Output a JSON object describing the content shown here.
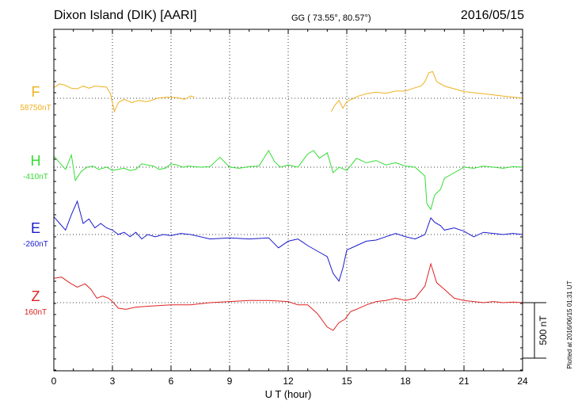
{
  "header": {
    "station": "Dixon Island (DIK)  [AARI]",
    "coords": "GG ( 73.55°,  80.57°)",
    "date": "2016/05/15"
  },
  "chart_data": {
    "type": "line",
    "xlabel": "U T (hour)",
    "xlim": [
      0,
      24
    ],
    "xticks": [
      "0",
      "3",
      "6",
      "9",
      "12",
      "15",
      "18",
      "21",
      "24"
    ],
    "scale_bar_label": "500 nT",
    "scale_bar_nT": 500,
    "plotted_note": "Plotted at 2016/06/15 01:31  UT",
    "series": [
      {
        "name": "F",
        "baseline_label": "58750nT",
        "color": "#f0b020",
        "segments": [
          [
            [
              0,
              95
            ],
            [
              0.3,
              130
            ],
            [
              0.6,
              115
            ],
            [
              0.9,
              90
            ],
            [
              1.2,
              85
            ],
            [
              1.5,
              110
            ],
            [
              1.8,
              90
            ],
            [
              2.1,
              110
            ],
            [
              2.4,
              105
            ],
            [
              2.7,
              100
            ],
            [
              2.9,
              40
            ],
            [
              3.1,
              -120
            ],
            [
              3.3,
              -40
            ],
            [
              3.6,
              -10
            ],
            [
              4.0,
              -40
            ],
            [
              4.3,
              -20
            ],
            [
              4.8,
              -30
            ],
            [
              5.3,
              0
            ],
            [
              5.8,
              10
            ],
            [
              6.3,
              5
            ],
            [
              6.7,
              -10
            ],
            [
              7.0,
              20
            ],
            [
              7.2,
              10
            ]
          ],
          [
            [
              14.2,
              -120
            ],
            [
              14.4,
              -60
            ],
            [
              14.6,
              -20
            ],
            [
              14.8,
              -90
            ],
            [
              15.0,
              -30
            ],
            [
              15.3,
              -5
            ],
            [
              15.6,
              20
            ],
            [
              16.0,
              40
            ],
            [
              16.5,
              55
            ],
            [
              17.0,
              45
            ],
            [
              17.5,
              65
            ],
            [
              18.0,
              65
            ],
            [
              18.5,
              95
            ],
            [
              18.8,
              110
            ],
            [
              19.0,
              150
            ],
            [
              19.2,
              230
            ],
            [
              19.4,
              240
            ],
            [
              19.6,
              150
            ],
            [
              20.0,
              110
            ],
            [
              20.5,
              85
            ],
            [
              21.0,
              60
            ],
            [
              21.5,
              50
            ],
            [
              22.0,
              40
            ],
            [
              22.5,
              30
            ],
            [
              23.0,
              20
            ],
            [
              23.5,
              10
            ],
            [
              24.0,
              0
            ]
          ]
        ]
      },
      {
        "name": "H",
        "baseline_label": "-410nT",
        "color": "#33dd33",
        "segments": [
          [
            [
              0,
              100
            ],
            [
              0.3,
              40
            ],
            [
              0.6,
              -20
            ],
            [
              0.9,
              110
            ],
            [
              1.1,
              -120
            ],
            [
              1.4,
              -40
            ],
            [
              1.7,
              0
            ],
            [
              2.0,
              10
            ],
            [
              2.3,
              -20
            ],
            [
              2.7,
              0
            ],
            [
              3.0,
              -30
            ],
            [
              3.3,
              -20
            ],
            [
              3.6,
              -10
            ],
            [
              3.9,
              -30
            ],
            [
              4.2,
              -20
            ],
            [
              4.5,
              30
            ],
            [
              4.8,
              20
            ],
            [
              5.1,
              10
            ],
            [
              5.4,
              -20
            ],
            [
              5.7,
              -10
            ],
            [
              6.0,
              30
            ],
            [
              6.3,
              20
            ],
            [
              6.6,
              0
            ],
            [
              6.9,
              10
            ],
            [
              7.5,
              0
            ],
            [
              8.0,
              5
            ],
            [
              8.5,
              90
            ],
            [
              9.0,
              0
            ],
            [
              9.5,
              -10
            ],
            [
              10.0,
              5
            ],
            [
              10.5,
              10
            ],
            [
              11.0,
              150
            ],
            [
              11.3,
              50
            ],
            [
              11.6,
              0
            ],
            [
              12.0,
              20
            ],
            [
              12.5,
              0
            ],
            [
              13.0,
              120
            ],
            [
              13.3,
              150
            ],
            [
              13.6,
              80
            ],
            [
              14.0,
              130
            ],
            [
              14.3,
              -50
            ],
            [
              14.6,
              0
            ],
            [
              15.0,
              -30
            ],
            [
              15.5,
              80
            ],
            [
              16.0,
              40
            ],
            [
              16.5,
              60
            ],
            [
              17.0,
              20
            ],
            [
              17.5,
              40
            ],
            [
              18.0,
              10
            ],
            [
              18.5,
              0
            ],
            [
              19.0,
              -80
            ],
            [
              19.1,
              -330
            ],
            [
              19.3,
              -380
            ],
            [
              19.5,
              -250
            ],
            [
              19.8,
              -200
            ],
            [
              20.0,
              -100
            ],
            [
              20.5,
              -50
            ],
            [
              21.0,
              0
            ],
            [
              21.5,
              -10
            ],
            [
              22.0,
              10
            ],
            [
              22.5,
              0
            ],
            [
              23.0,
              -10
            ],
            [
              23.5,
              5
            ],
            [
              24.0,
              0
            ]
          ]
        ]
      },
      {
        "name": "E",
        "baseline_label": "-260nT",
        "color": "#1a1acc",
        "segments": [
          [
            [
              0,
              160
            ],
            [
              0.3,
              100
            ],
            [
              0.6,
              40
            ],
            [
              0.9,
              180
            ],
            [
              1.2,
              300
            ],
            [
              1.5,
              100
            ],
            [
              1.8,
              140
            ],
            [
              2.1,
              60
            ],
            [
              2.4,
              100
            ],
            [
              2.7,
              60
            ],
            [
              3.0,
              40
            ],
            [
              3.3,
              0
            ],
            [
              3.6,
              20
            ],
            [
              3.9,
              -20
            ],
            [
              4.2,
              20
            ],
            [
              4.5,
              -40
            ],
            [
              4.8,
              0
            ],
            [
              5.2,
              -20
            ],
            [
              5.6,
              0
            ],
            [
              6.0,
              -10
            ],
            [
              6.5,
              10
            ],
            [
              7.0,
              0
            ],
            [
              8.0,
              -40
            ],
            [
              9.0,
              -30
            ],
            [
              10.0,
              -40
            ],
            [
              11.0,
              -30
            ],
            [
              11.5,
              -120
            ],
            [
              12.0,
              -60
            ],
            [
              12.5,
              -40
            ],
            [
              13.0,
              -100
            ],
            [
              13.5,
              -150
            ],
            [
              14.0,
              -200
            ],
            [
              14.3,
              -350
            ],
            [
              14.6,
              -420
            ],
            [
              14.8,
              -300
            ],
            [
              15.0,
              -140
            ],
            [
              15.5,
              -100
            ],
            [
              16.0,
              -60
            ],
            [
              16.5,
              -50
            ],
            [
              17.0,
              -20
            ],
            [
              17.5,
              10
            ],
            [
              18.0,
              -20
            ],
            [
              18.5,
              -40
            ],
            [
              19.0,
              0
            ],
            [
              19.3,
              150
            ],
            [
              19.5,
              110
            ],
            [
              19.8,
              80
            ],
            [
              20.0,
              40
            ],
            [
              20.5,
              60
            ],
            [
              21.0,
              30
            ],
            [
              21.5,
              -20
            ],
            [
              22.0,
              20
            ],
            [
              22.5,
              10
            ],
            [
              23.0,
              0
            ],
            [
              23.5,
              10
            ],
            [
              24.0,
              0
            ]
          ]
        ]
      },
      {
        "name": "Z",
        "baseline_label": "160nT",
        "color": "#dd2222",
        "segments": [
          [
            [
              0,
              220
            ],
            [
              0.4,
              230
            ],
            [
              0.8,
              180
            ],
            [
              1.2,
              140
            ],
            [
              1.6,
              170
            ],
            [
              1.9,
              120
            ],
            [
              2.2,
              40
            ],
            [
              2.5,
              60
            ],
            [
              2.8,
              40
            ],
            [
              3.0,
              10
            ],
            [
              3.3,
              -50
            ],
            [
              3.7,
              -60
            ],
            [
              4.2,
              -40
            ],
            [
              5.0,
              -30
            ],
            [
              6.0,
              -20
            ],
            [
              7.0,
              -20
            ],
            [
              8.0,
              0
            ],
            [
              9.0,
              10
            ],
            [
              10.0,
              20
            ],
            [
              11.0,
              20
            ],
            [
              12.0,
              10
            ],
            [
              12.5,
              -20
            ],
            [
              13.0,
              -20
            ],
            [
              13.5,
              -100
            ],
            [
              14.0,
              -220
            ],
            [
              14.3,
              -250
            ],
            [
              14.6,
              -180
            ],
            [
              14.9,
              -150
            ],
            [
              15.2,
              -80
            ],
            [
              15.5,
              -60
            ],
            [
              16.0,
              -20
            ],
            [
              16.5,
              10
            ],
            [
              17.0,
              20
            ],
            [
              17.5,
              40
            ],
            [
              18.0,
              20
            ],
            [
              18.5,
              40
            ],
            [
              19.0,
              150
            ],
            [
              19.3,
              350
            ],
            [
              19.6,
              180
            ],
            [
              20.0,
              120
            ],
            [
              20.5,
              40
            ],
            [
              21.0,
              20
            ],
            [
              21.5,
              10
            ],
            [
              22.0,
              0
            ],
            [
              22.5,
              10
            ],
            [
              23.0,
              0
            ],
            [
              23.5,
              5
            ],
            [
              24.0,
              0
            ]
          ]
        ]
      }
    ]
  }
}
